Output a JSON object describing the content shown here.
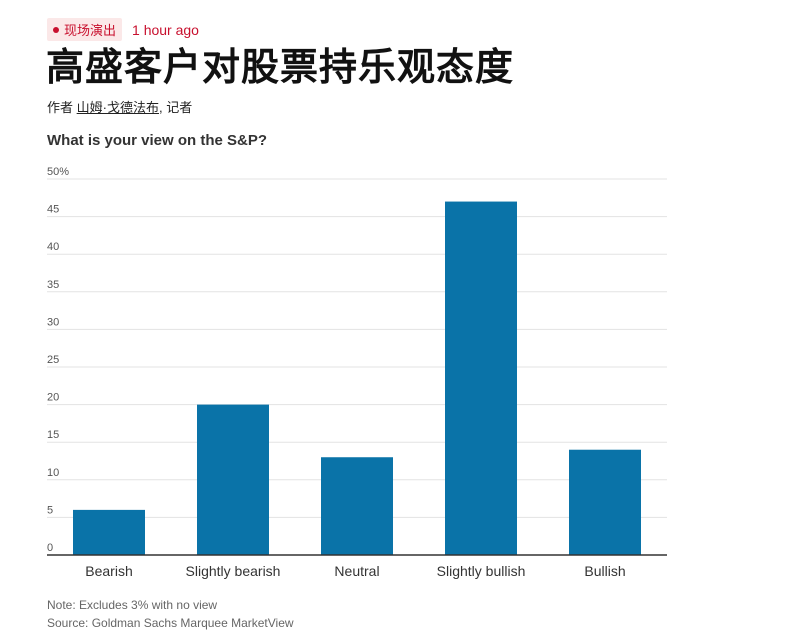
{
  "header": {
    "badge_label": "现场演出",
    "timestamp": "1 hour ago"
  },
  "article": {
    "headline": "高盛客户对股票持乐观态度",
    "byline_prefix": "作者",
    "author": "山姆·戈德法布",
    "byline_suffix": ", 记者"
  },
  "chart_data": {
    "type": "bar",
    "title": "What is your view on the S&P?",
    "categories": [
      "Bearish",
      "Slightly bearish",
      "Neutral",
      "Slightly bullish",
      "Bullish"
    ],
    "values": [
      6,
      20,
      13,
      47,
      14
    ],
    "ylim": [
      0,
      50
    ],
    "yticks": [
      0,
      5,
      10,
      15,
      20,
      25,
      30,
      35,
      40,
      45,
      50
    ],
    "ytick_labels": [
      "0",
      "5",
      "10",
      "15",
      "20",
      "25",
      "30",
      "35",
      "40",
      "45",
      "50%"
    ],
    "grid": true,
    "bar_color": "#0a73a8",
    "xlabel": "",
    "ylabel": ""
  },
  "footer": {
    "note": "Note: Excludes 3% with no view",
    "source": "Source: Goldman Sachs Marquee MarketView"
  },
  "colors": {
    "accent": "#c8102e",
    "bar": "#0a73a8"
  }
}
